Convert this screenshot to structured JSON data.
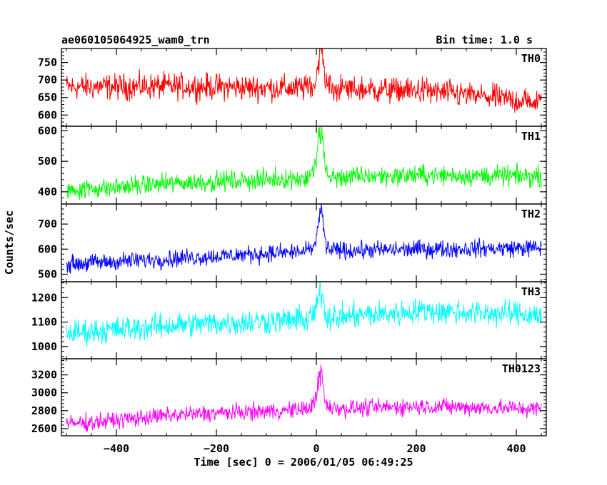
{
  "header": {
    "title": "ae060105064925_wam0_trn",
    "bin_time": "Bin time: 1.0 s"
  },
  "axes": {
    "ylabel": "Counts/sec",
    "xlabel": "Time [sec] 0 = 2006/01/05 06:49:25"
  },
  "chart_data": [
    {
      "type": "line",
      "name": "TH0",
      "color": "#ff0000",
      "xlim": [
        -510,
        460
      ],
      "ylim": [
        568,
        790
      ],
      "yticks": [
        600,
        650,
        700,
        750
      ],
      "baseline": [
        680,
        682,
        676,
        670,
        635
      ],
      "noise": 32,
      "peak": {
        "x": 8,
        "height": 110,
        "width": 8
      },
      "x": [
        -500,
        450
      ]
    },
    {
      "type": "line",
      "name": "TH1",
      "color": "#00ff00",
      "xlim": [
        -510,
        460
      ],
      "ylim": [
        360,
        615
      ],
      "yticks": [
        400,
        500,
        600
      ],
      "baseline": [
        405,
        430,
        445,
        455,
        450
      ],
      "noise": 28,
      "peak": {
        "x": 8,
        "height": 150,
        "width": 8
      },
      "x": [
        -500,
        450
      ]
    },
    {
      "type": "line",
      "name": "TH2",
      "color": "#0000ff",
      "xlim": [
        -510,
        460
      ],
      "ylim": [
        470,
        780
      ],
      "yticks": [
        500,
        600,
        700
      ],
      "baseline": [
        540,
        565,
        590,
        600,
        605
      ],
      "noise": 30,
      "peak": {
        "x": 8,
        "height": 150,
        "width": 8
      },
      "x": [
        -500,
        450
      ]
    },
    {
      "type": "line",
      "name": "TH3",
      "color": "#00ffff",
      "xlim": [
        -510,
        460
      ],
      "ylim": [
        950,
        1265
      ],
      "yticks": [
        1000,
        1100,
        1200
      ],
      "baseline": [
        1055,
        1090,
        1110,
        1145,
        1130
      ],
      "noise": 45,
      "peak": {
        "x": 8,
        "height": 110,
        "width": 8
      },
      "x": [
        -500,
        450
      ]
    },
    {
      "type": "line",
      "name": "TH0123",
      "color": "#ff00ff",
      "xlim": [
        -510,
        460
      ],
      "ylim": [
        2520,
        3380
      ],
      "yticks": [
        2600,
        2800,
        3000,
        3200
      ],
      "baseline": [
        2650,
        2760,
        2810,
        2850,
        2820
      ],
      "noise": 80,
      "peak": {
        "x": 8,
        "height": 400,
        "width": 8
      },
      "x": [
        -500,
        450
      ],
      "xticks": [
        -400,
        -200,
        0,
        200,
        400
      ]
    }
  ]
}
